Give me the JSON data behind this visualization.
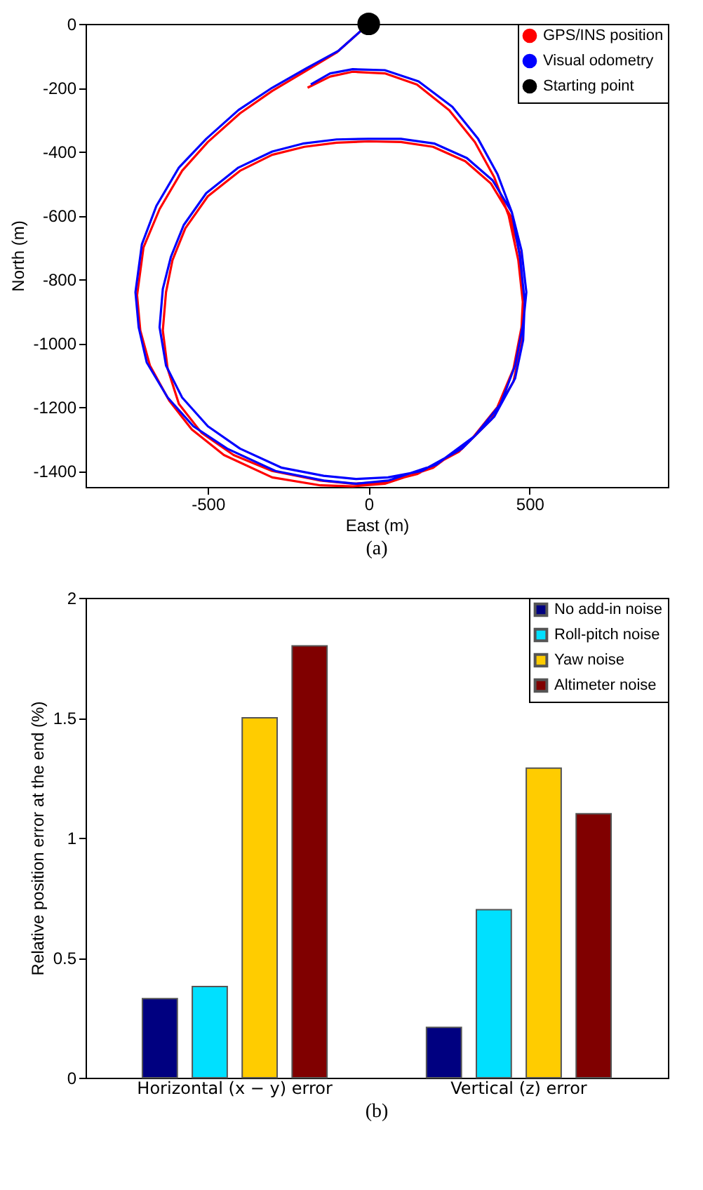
{
  "chart_data": [
    {
      "type": "line",
      "xlabel": "East (m)",
      "ylabel": "North (m)",
      "xlim": [
        -880,
        930
      ],
      "ylim": [
        -1450,
        0
      ],
      "xticks": [
        -500,
        0,
        500
      ],
      "yticks": [
        -1400,
        -1200,
        -1000,
        -800,
        -600,
        -400,
        -200,
        0
      ],
      "grid": false,
      "legend": "top right",
      "annotations": [
        "(a)"
      ],
      "series": [
        {
          "name": "GPS/INS position",
          "color": "#ff0000",
          "x": [
            0,
            -100,
            -200,
            -300,
            -400,
            -500,
            -580,
            -650,
            -700,
            -720,
            -710,
            -680,
            -620,
            -550,
            -450,
            -300,
            -150,
            -50,
            50,
            200,
            320,
            400,
            450,
            475,
            480,
            470,
            440,
            380,
            300,
            200,
            100,
            0,
            -100,
            -200,
            -300,
            -400,
            -500,
            -570,
            -610,
            -630,
            -640,
            -625,
            -590,
            -520,
            -420,
            -300,
            -150,
            -50,
            50,
            150,
            280,
            380,
            450,
            475,
            480,
            465,
            435,
            390,
            330,
            250,
            150,
            50,
            -50,
            -120,
            -190
          ],
          "values": [
            0,
            -90,
            -150,
            -210,
            -280,
            -370,
            -460,
            -580,
            -700,
            -850,
            -960,
            -1070,
            -1180,
            -1270,
            -1350,
            -1420,
            -1445,
            -1448,
            -1440,
            -1390,
            -1300,
            -1200,
            -1080,
            -950,
            -850,
            -720,
            -600,
            -500,
            -430,
            -385,
            -370,
            -368,
            -372,
            -385,
            -410,
            -460,
            -540,
            -640,
            -740,
            -840,
            -960,
            -1080,
            -1190,
            -1280,
            -1350,
            -1400,
            -1430,
            -1440,
            -1435,
            -1410,
            -1340,
            -1240,
            -1120,
            -1000,
            -880,
            -740,
            -600,
            -480,
            -370,
            -270,
            -190,
            -155,
            -150,
            -165,
            -200
          ]
        },
        {
          "name": "Visual odometry",
          "color": "#0000ff",
          "x": [
            0,
            -95,
            -195,
            -300,
            -405,
            -505,
            -590,
            -660,
            -705,
            -725,
            -715,
            -690,
            -625,
            -545,
            -440,
            -290,
            -140,
            -40,
            60,
            210,
            330,
            410,
            455,
            480,
            490,
            475,
            445,
            385,
            305,
            205,
            100,
            0,
            -100,
            -205,
            -300,
            -405,
            -505,
            -575,
            -615,
            -640,
            -650,
            -630,
            -580,
            -500,
            -400,
            -270,
            -140,
            -40,
            60,
            165,
            290,
            390,
            455,
            480,
            485,
            470,
            445,
            400,
            340,
            260,
            155,
            50,
            -50,
            -120,
            -180
          ],
          "values": [
            0,
            -85,
            -140,
            -200,
            -270,
            -360,
            -450,
            -570,
            -690,
            -840,
            -950,
            -1060,
            -1170,
            -1260,
            -1330,
            -1400,
            -1430,
            -1440,
            -1430,
            -1380,
            -1290,
            -1190,
            -1070,
            -940,
            -840,
            -710,
            -590,
            -490,
            -420,
            -375,
            -360,
            -360,
            -362,
            -375,
            -400,
            -450,
            -530,
            -630,
            -730,
            -830,
            -950,
            -1070,
            -1170,
            -1260,
            -1330,
            -1390,
            -1415,
            -1425,
            -1420,
            -1400,
            -1330,
            -1230,
            -1110,
            -990,
            -870,
            -730,
            -590,
            -470,
            -360,
            -260,
            -180,
            -145,
            -142,
            -155,
            -190
          ]
        },
        {
          "name": "Starting point",
          "type": "scatter",
          "marker": "circle",
          "color": "#000000",
          "x": [
            0
          ],
          "values": [
            0
          ]
        }
      ]
    },
    {
      "type": "bar",
      "ylabel": "Relative position error at the end (%)",
      "categories": [
        "Horizontal (x − y) error",
        "Vertical (z) error"
      ],
      "ylim": [
        0,
        2
      ],
      "yticks": [
        0,
        0.5,
        1,
        1.5,
        2
      ],
      "grid": false,
      "legend": "top right",
      "annotations": [
        "(b)"
      ],
      "series": [
        {
          "name": "No add-in noise",
          "color": "#000080",
          "values": [
            0.33,
            0.21
          ]
        },
        {
          "name": "Roll-pitch noise",
          "color": "#00e0ff",
          "values": [
            0.38,
            0.7
          ]
        },
        {
          "name": "Yaw noise",
          "color": "#ffcc00",
          "values": [
            1.5,
            1.29
          ]
        },
        {
          "name": "Altimeter noise",
          "color": "#800000",
          "values": [
            1.8,
            1.1
          ]
        }
      ]
    }
  ]
}
